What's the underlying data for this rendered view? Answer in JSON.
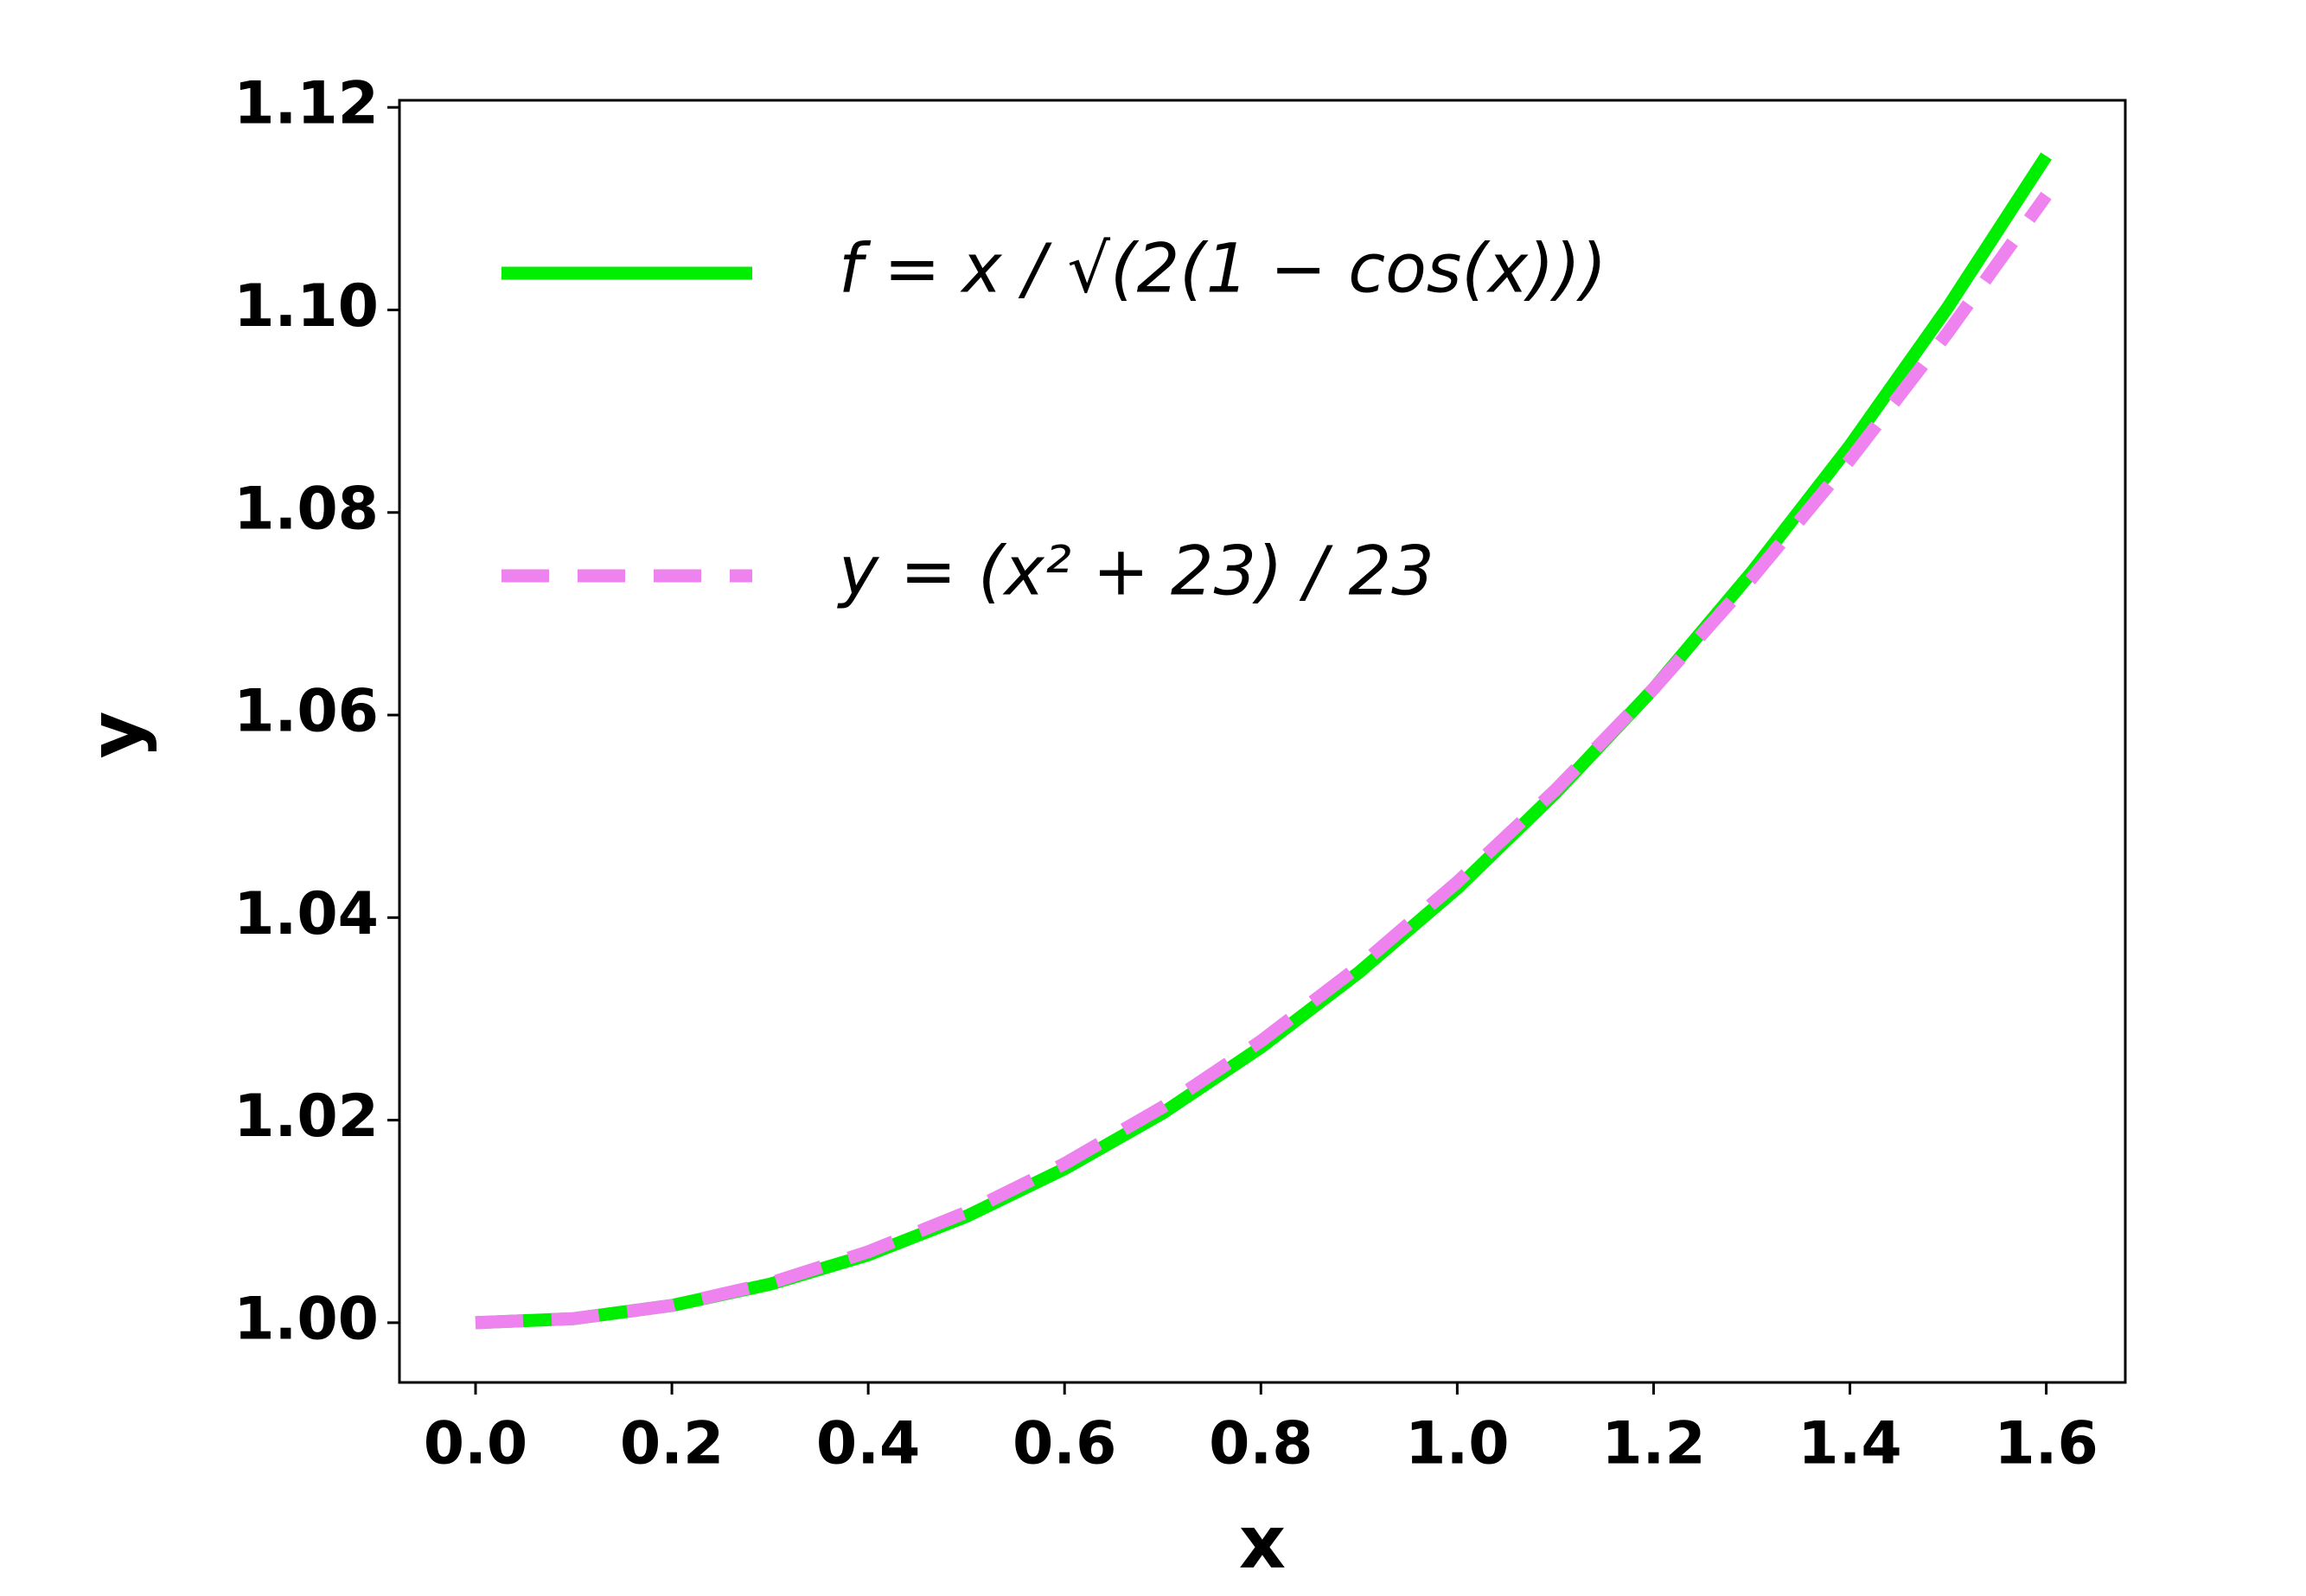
{
  "chart_data": {
    "type": "line",
    "x": [
      0,
      0.1,
      0.2,
      0.3,
      0.4,
      0.5,
      0.6,
      0.7,
      0.8,
      0.9,
      1.0,
      1.1,
      1.2,
      1.3,
      1.4,
      1.5,
      1.6
    ],
    "series": [
      {
        "name": "f = x / √(2(1 − cos(x)))",
        "color": "#00ee00",
        "dashed": false,
        "values": [
          1,
          1.0004,
          1.0017,
          1.0038,
          1.0067,
          1.0105,
          1.0152,
          1.0207,
          1.0272,
          1.0346,
          1.0429,
          1.0523,
          1.0626,
          1.0741,
          1.0866,
          1.1003,
          1.1152
        ]
      },
      {
        "name": "y = (x² + 23) / 23",
        "color": "#ee82ee",
        "dashed": true,
        "values": [
          1,
          1.0004,
          1.0017,
          1.0039,
          1.007,
          1.0109,
          1.0157,
          1.0213,
          1.0278,
          1.0352,
          1.0435,
          1.0526,
          1.0626,
          1.0735,
          1.0852,
          1.0978,
          1.1113
        ]
      }
    ],
    "x_label": "x",
    "y_label": "y",
    "xlim": [
      -0.0775,
      1.6805
    ],
    "ylim": [
      0.9941,
      1.1207
    ],
    "xticks": [
      {
        "value": 0,
        "label": "0.0"
      },
      {
        "value": 0.2,
        "label": "0.2"
      },
      {
        "value": 0.4,
        "label": "0.4"
      },
      {
        "value": 0.6,
        "label": "0.6"
      },
      {
        "value": 0.8,
        "label": "0.8"
      },
      {
        "value": 1.0,
        "label": "1.0"
      },
      {
        "value": 1.2,
        "label": "1.2"
      },
      {
        "value": 1.4,
        "label": "1.4"
      },
      {
        "value": 1.6,
        "label": "1.6"
      }
    ],
    "yticks": [
      {
        "value": 1.0,
        "label": "1.00"
      },
      {
        "value": 1.02,
        "label": "1.02"
      },
      {
        "value": 1.04,
        "label": "1.04"
      },
      {
        "value": 1.06,
        "label": "1.06"
      },
      {
        "value": 1.08,
        "label": "1.08"
      },
      {
        "value": 1.1,
        "label": "1.10"
      },
      {
        "value": 1.12,
        "label": "1.12"
      }
    ],
    "legend": "upper left"
  }
}
